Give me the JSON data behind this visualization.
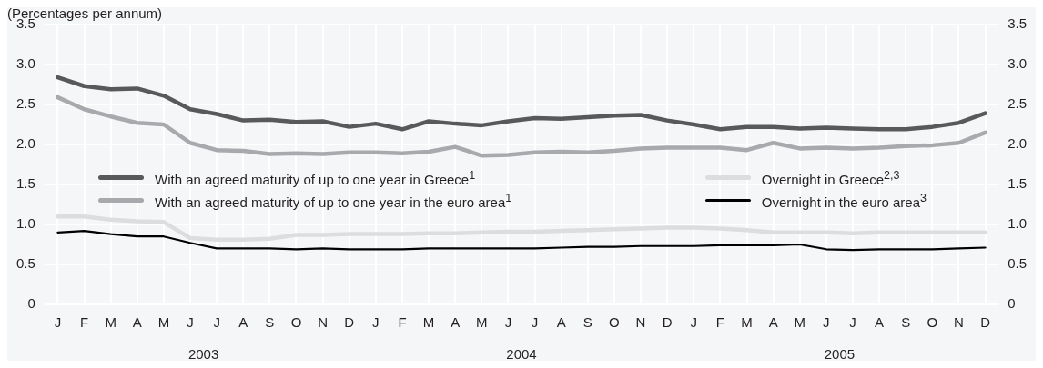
{
  "chart_data": {
    "type": "line",
    "ylabel": "(Percentages per annum)",
    "categories": [
      "J",
      "F",
      "M",
      "A",
      "M",
      "J",
      "J",
      "A",
      "S",
      "O",
      "N",
      "D",
      "J",
      "F",
      "M",
      "A",
      "M",
      "J",
      "J",
      "A",
      "S",
      "O",
      "N",
      "D",
      "J",
      "F",
      "M",
      "A",
      "M",
      "J",
      "J",
      "A",
      "S",
      "O",
      "N",
      "D"
    ],
    "series": [
      {
        "name": "With an agreed maturity of up to one year in Greece$^{1}$",
        "color": "#58595b",
        "values": [
          2.84,
          2.73,
          2.69,
          2.7,
          2.61,
          2.44,
          2.38,
          2.3,
          2.31,
          2.28,
          2.29,
          2.22,
          2.26,
          2.19,
          2.29,
          2.26,
          2.24,
          2.29,
          2.33,
          2.32,
          2.34,
          2.36,
          2.37,
          2.3,
          2.25,
          2.19,
          2.22,
          2.22,
          2.2,
          2.21,
          2.2,
          2.19,
          2.19,
          2.22,
          2.27,
          2.39
        ]
      },
      {
        "name": "With an agreed maturity of up to one year in the euro area$^{1}$",
        "color": "#a7a9ac",
        "values": [
          2.59,
          2.44,
          2.35,
          2.27,
          2.25,
          2.02,
          1.93,
          1.92,
          1.88,
          1.89,
          1.88,
          1.9,
          1.9,
          1.89,
          1.91,
          1.97,
          1.86,
          1.87,
          1.9,
          1.91,
          1.9,
          1.92,
          1.95,
          1.96,
          1.96,
          1.96,
          1.93,
          2.02,
          1.95,
          1.96,
          1.95,
          1.96,
          1.98,
          1.99,
          2.02,
          2.15
        ]
      },
      {
        "name": "Overnight in Greece$^{2,3}$",
        "color": "#dcdddf",
        "values": [
          1.1,
          1.1,
          1.06,
          1.04,
          1.03,
          0.83,
          0.81,
          0.81,
          0.82,
          0.87,
          0.87,
          0.88,
          0.88,
          0.88,
          0.89,
          0.89,
          0.9,
          0.91,
          0.91,
          0.92,
          0.93,
          0.94,
          0.95,
          0.96,
          0.96,
          0.95,
          0.93,
          0.9,
          0.9,
          0.9,
          0.89,
          0.9,
          0.9,
          0.9,
          0.9,
          0.9
        ]
      },
      {
        "name": "Overnight in the euro area$^{3}$",
        "color": "#000000",
        "values": [
          0.9,
          0.92,
          0.88,
          0.85,
          0.85,
          0.77,
          0.7,
          0.7,
          0.7,
          0.69,
          0.7,
          0.69,
          0.69,
          0.69,
          0.7,
          0.7,
          0.7,
          0.7,
          0.7,
          0.71,
          0.72,
          0.72,
          0.73,
          0.73,
          0.73,
          0.74,
          0.74,
          0.74,
          0.75,
          0.69,
          0.68,
          0.69,
          0.69,
          0.69,
          0.7,
          0.71
        ]
      }
    ],
    "annotations": [
      "2003",
      "2004",
      "2005"
    ],
    "ylim": [
      0,
      3.5
    ],
    "yticks": [
      {
        "value": 0,
        "label": "0"
      },
      {
        "value": 0.5,
        "label": "0.5"
      },
      {
        "value": 1,
        "label": "1.0"
      },
      {
        "value": 1.5,
        "label": "1.5"
      },
      {
        "value": 2,
        "label": "2.0"
      },
      {
        "value": 2.5,
        "label": "2.5"
      },
      {
        "value": 3,
        "label": "3.0"
      },
      {
        "value": 3.5,
        "label": "3.5"
      }
    ],
    "y2lim": [
      0,
      3.5
    ],
    "y2ticks": [
      {
        "value": 0,
        "label": "0"
      },
      {
        "value": 0.5,
        "label": "0.5"
      },
      {
        "value": 1,
        "label": "1.0"
      },
      {
        "value": 1.5,
        "label": "1.5"
      },
      {
        "value": 2,
        "label": "2.0"
      },
      {
        "value": 2.5,
        "label": "2.5"
      },
      {
        "value": 3,
        "label": "3.0"
      },
      {
        "value": 3.5,
        "label": "3.5"
      }
    ],
    "grid": true,
    "legend": "center",
    "marker": "none",
    "line_style": "solid"
  }
}
